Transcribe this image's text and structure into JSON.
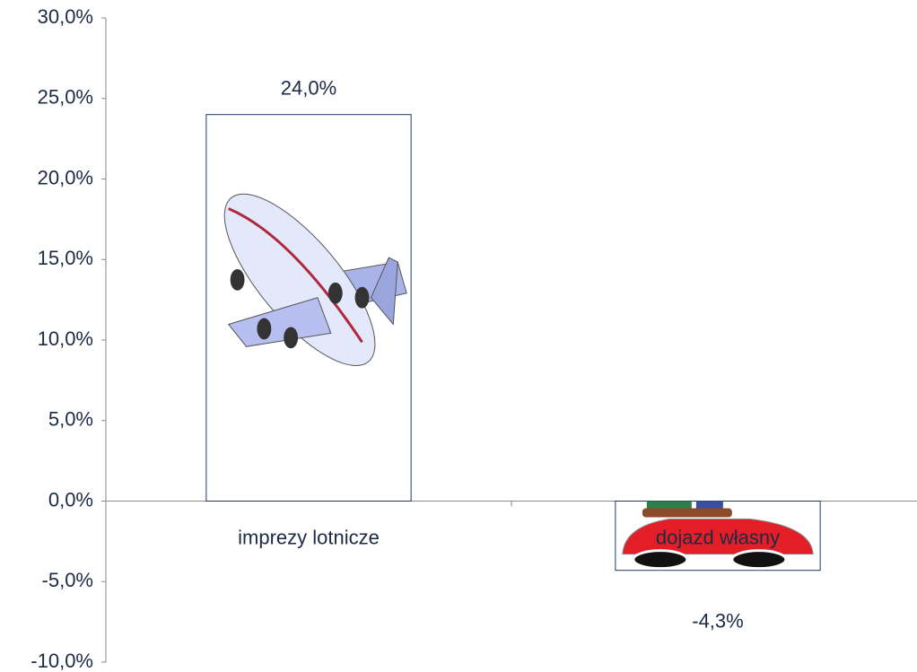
{
  "chart_data": {
    "type": "bar",
    "categories": [
      "imprezy lotnicze",
      "dojazd własny"
    ],
    "values": [
      24.0,
      -4.3
    ],
    "value_labels": [
      "24,0%",
      "-4,3%"
    ],
    "color": "#1f3864",
    "ylim": [
      -10,
      30
    ],
    "yticks": [
      {
        "value": -10,
        "label": "-10,0%"
      },
      {
        "value": -5,
        "label": "-5,0%"
      },
      {
        "value": 0,
        "label": "0,0%"
      },
      {
        "value": 5,
        "label": "5,0%"
      },
      {
        "value": 10,
        "label": "10,0%"
      },
      {
        "value": 15,
        "label": "15,0%"
      },
      {
        "value": 20,
        "label": "20,0%"
      },
      {
        "value": 25,
        "label": "25,0%"
      },
      {
        "value": 30,
        "label": "30,0%"
      }
    ],
    "grid": false
  }
}
